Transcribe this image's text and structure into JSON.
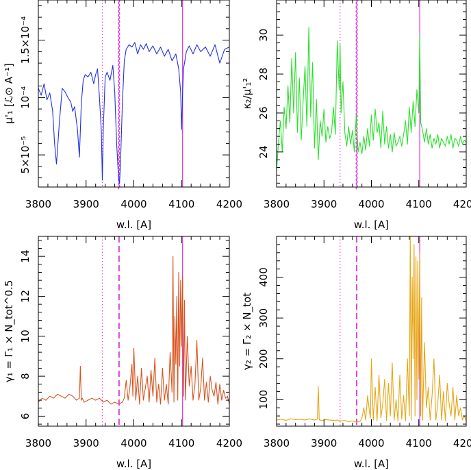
{
  "chart_data": [
    {
      "type": "line",
      "panel": "top-left",
      "xlabel": "w.l. [A]",
      "ylabel": "μ'₁ [ℒ⊙ A⁻¹]",
      "y_scale_factors": [
        "10⁻⁵",
        "10⁻⁴"
      ],
      "xlim": [
        3800,
        4200
      ],
      "ylim": [
        2.2e-05,
        0.000185
      ],
      "x_ticks": [
        3800,
        3900,
        4000,
        4100,
        4200
      ],
      "x_tick_labels": [
        "3800",
        "3900",
        "4000",
        "4100",
        "4200"
      ],
      "y_ticks": [
        5e-05,
        0.0001,
        0.00015
      ],
      "y_tick_labels": [
        "5×10⁻⁵",
        "10⁻⁴",
        "1.5×10⁻⁴"
      ],
      "color": "#1f2fe6",
      "series": [
        {
          "x": [
            3800,
            3806,
            3812,
            3818,
            3824,
            3830,
            3834,
            3838,
            3844,
            3850,
            3856,
            3862,
            3868,
            3872,
            3876,
            3882,
            3886,
            3890,
            3894,
            3898,
            3904,
            3910,
            3916,
            3920,
            3924,
            3928,
            3932,
            3934,
            3936,
            3940,
            3944,
            3950,
            3956,
            3960,
            3964,
            3968,
            3970,
            3972,
            3976,
            3980,
            3984,
            3990,
            3996,
            4002,
            4008,
            4014,
            4020,
            4026,
            4032,
            4040,
            4048,
            4056,
            4064,
            4072,
            4080,
            4088,
            4094,
            4098,
            4100,
            4102,
            4104,
            4110,
            4116,
            4124,
            4132,
            4140,
            4150,
            4160,
            4170,
            4180,
            4190,
            4200
          ],
          "y": [
            0.000108,
            0.000102,
            0.000112,
            9.8e-05,
            0.000104,
            8.8e-05,
            6e-05,
            4.2e-05,
            7.8e-05,
            0.000108,
            0.000105,
            0.0001,
            9.6e-05,
            8.8e-05,
            9.2e-05,
            7.2e-05,
            4.8e-05,
            9.5e-05,
            0.000115,
            0.00012,
            0.000118,
            0.000122,
            0.000112,
            0.00012,
            0.000125,
            0.0001,
            7e-05,
            2.8e-05,
            7.2e-05,
            0.000118,
            0.000122,
            0.000115,
            0.000128,
            0.000105,
            6e-05,
            3e-05,
            2.5e-05,
            4.2e-05,
            9.5e-05,
            0.000132,
            0.000142,
            0.000146,
            0.000144,
            0.000148,
            0.000138,
            0.000146,
            0.000142,
            0.000147,
            0.00014,
            0.000145,
            0.000138,
            0.000144,
            0.000136,
            0.000142,
            0.000132,
            0.000138,
            0.000125,
            0.000105,
            7.2e-05,
            0.000102,
            0.000125,
            0.00014,
            0.000145,
            0.000138,
            0.000146,
            0.00014,
            0.000144,
            0.000136,
            0.000146,
            0.00013,
            0.000142,
            0.000144
          ]
        }
      ],
      "vlines": [
        {
          "x": 3934,
          "style": "dotted"
        },
        {
          "x": 3969,
          "style": "wavy"
        },
        {
          "x": 4102,
          "style": "solid"
        }
      ]
    },
    {
      "type": "line",
      "panel": "top-right",
      "xlabel": "w.l. [A]",
      "ylabel": "κ₂/μ'₁²",
      "xlim": [
        3800,
        4200
      ],
      "ylim": [
        22.2,
        31.8
      ],
      "x_ticks": [
        3800,
        3900,
        4000,
        4100,
        4200
      ],
      "x_tick_labels": [
        "3800",
        "3900",
        "4000",
        "4100",
        "4200"
      ],
      "y_ticks": [
        24,
        26,
        28,
        30
      ],
      "y_tick_labels": [
        "24",
        "26",
        "28",
        "30"
      ],
      "color": "#2ae02a",
      "series": [
        {
          "x": [
            3800,
            3804,
            3808,
            3812,
            3816,
            3820,
            3824,
            3828,
            3832,
            3836,
            3840,
            3844,
            3848,
            3852,
            3856,
            3860,
            3864,
            3868,
            3872,
            3876,
            3880,
            3884,
            3888,
            3892,
            3896,
            3900,
            3904,
            3908,
            3912,
            3916,
            3920,
            3924,
            3928,
            3932,
            3934,
            3936,
            3940,
            3944,
            3948,
            3952,
            3956,
            3960,
            3964,
            3968,
            3972,
            3976,
            3980,
            3984,
            3988,
            3992,
            3996,
            4000,
            4004,
            4008,
            4012,
            4016,
            4020,
            4024,
            4028,
            4032,
            4036,
            4040,
            4044,
            4048,
            4052,
            4056,
            4060,
            4064,
            4068,
            4072,
            4076,
            4080,
            4084,
            4088,
            4092,
            4096,
            4100,
            4102,
            4104,
            4108,
            4112,
            4116,
            4120,
            4124,
            4128,
            4132,
            4136,
            4140,
            4144,
            4148,
            4152,
            4156,
            4160,
            4164,
            4168,
            4172,
            4176,
            4180,
            4184,
            4188,
            4192,
            4196,
            4200
          ],
          "y": [
            23.0,
            24.5,
            25.6,
            24.0,
            26.3,
            25.2,
            27.4,
            25.5,
            28.8,
            26.0,
            29.1,
            25.0,
            27.8,
            24.6,
            26.6,
            28.4,
            25.3,
            30.4,
            25.8,
            28.6,
            24.2,
            26.7,
            23.6,
            25.6,
            24.8,
            26.2,
            24.5,
            25.3,
            24.7,
            25.0,
            26.3,
            24.9,
            29.7,
            27.2,
            29.5,
            26.0,
            27.6,
            25.0,
            24.3,
            25.3,
            24.4,
            25.1,
            24.0,
            25.9,
            24.0,
            24.5,
            23.9,
            24.8,
            24.1,
            25.2,
            24.3,
            25.9,
            24.6,
            26.2,
            25.0,
            25.5,
            24.2,
            26.1,
            24.4,
            25.3,
            24.2,
            24.9,
            24.0,
            25.0,
            24.3,
            24.5,
            24.8,
            24.3,
            24.9,
            25.6,
            24.4,
            26.3,
            25.0,
            26.6,
            25.3,
            27.2,
            26.0,
            30.0,
            25.5,
            25.1,
            24.5,
            25.2,
            24.4,
            24.9,
            24.2,
            24.7,
            24.4,
            24.9,
            24.2,
            24.7,
            24.5,
            24.3,
            24.8,
            24.4,
            24.9,
            24.2,
            24.7,
            24.6,
            24.3,
            24.8,
            24.4,
            24.6,
            24.5
          ]
        }
      ],
      "vlines": [
        {
          "x": 3934,
          "style": "dotted"
        },
        {
          "x": 3969,
          "style": "wavy"
        },
        {
          "x": 4102,
          "style": "solid"
        }
      ]
    },
    {
      "type": "line",
      "panel": "bottom-left",
      "xlabel": "w.l. [A]",
      "ylabel": "γ₁ = Γ₁ × N_tot^0.5",
      "xlim": [
        3800,
        4200
      ],
      "ylim": [
        5.5,
        15.0
      ],
      "x_ticks": [
        3800,
        3900,
        4000,
        4100,
        4200
      ],
      "x_tick_labels": [
        "3800",
        "3900",
        "4000",
        "4100",
        "4200"
      ],
      "y_ticks": [
        6,
        8,
        10,
        12,
        14
      ],
      "y_tick_labels": [
        "6",
        "8",
        "10",
        "12",
        "14"
      ],
      "color": "#d9531e",
      "series": [
        {
          "x": [
            3800,
            3808,
            3816,
            3824,
            3832,
            3840,
            3848,
            3856,
            3864,
            3872,
            3880,
            3886,
            3888,
            3890,
            3892,
            3896,
            3904,
            3912,
            3920,
            3928,
            3936,
            3944,
            3952,
            3960,
            3968,
            3976,
            3980,
            3984,
            3988,
            3992,
            3996,
            3998,
            4000,
            4004,
            4008,
            4012,
            4016,
            4020,
            4024,
            4028,
            4032,
            4036,
            4040,
            4044,
            4048,
            4052,
            4056,
            4060,
            4064,
            4068,
            4072,
            4076,
            4080,
            4082,
            4084,
            4086,
            4088,
            4090,
            4092,
            4094,
            4096,
            4098,
            4100,
            4102,
            4104,
            4106,
            4108,
            4112,
            4116,
            4120,
            4124,
            4128,
            4132,
            4136,
            4140,
            4144,
            4148,
            4152,
            4156,
            4160,
            4164,
            4168,
            4172,
            4176,
            4180,
            4184,
            4188,
            4192,
            4196,
            4200
          ],
          "y": [
            6.7,
            6.9,
            6.8,
            7.0,
            6.9,
            7.1,
            7.0,
            6.9,
            7.1,
            7.0,
            6.8,
            6.9,
            8.5,
            6.8,
            6.9,
            6.7,
            6.8,
            6.9,
            6.8,
            6.9,
            6.7,
            6.8,
            6.6,
            6.7,
            6.6,
            6.7,
            6.9,
            7.8,
            6.8,
            7.5,
            8.6,
            7.0,
            9.4,
            6.8,
            8.0,
            6.6,
            8.4,
            6.8,
            7.4,
            8.0,
            6.7,
            8.3,
            7.0,
            8.9,
            6.7,
            7.6,
            6.6,
            8.4,
            6.8,
            7.6,
            6.6,
            9.2,
            7.2,
            14.0,
            6.7,
            11.0,
            8.6,
            12.0,
            6.8,
            13.2,
            8.5,
            12.8,
            9.5,
            13.0,
            7.0,
            11.8,
            6.8,
            10.0,
            7.5,
            8.5,
            6.8,
            7.6,
            9.8,
            6.8,
            7.4,
            8.9,
            6.8,
            7.7,
            6.7,
            8.0,
            7.3,
            7.0,
            7.7,
            6.6,
            7.6,
            6.8,
            7.3,
            6.9,
            7.0,
            6.6
          ]
        }
      ],
      "vlines": [
        {
          "x": 3934,
          "style": "dotted"
        },
        {
          "x": 3969,
          "style": "dashed"
        },
        {
          "x": 4102,
          "style": "solid"
        }
      ]
    },
    {
      "type": "line",
      "panel": "bottom-right",
      "xlabel": "w.l. [A]",
      "ylabel": "γ₂ = Γ₂ × N_tot",
      "xlim": [
        3800,
        4200
      ],
      "ylim": [
        35,
        500
      ],
      "x_ticks": [
        3800,
        3900,
        4000,
        4100,
        4200
      ],
      "x_tick_labels": [
        "3800",
        "3900",
        "4000",
        "4100",
        "4200"
      ],
      "y_ticks": [
        100,
        200,
        300,
        400
      ],
      "y_tick_labels": [
        "100",
        "200",
        "300",
        "400"
      ],
      "color": "#e6a514",
      "series": [
        {
          "x": [
            3800,
            3810,
            3820,
            3830,
            3840,
            3850,
            3860,
            3870,
            3880,
            3886,
            3888,
            3890,
            3892,
            3896,
            3904,
            3912,
            3920,
            3928,
            3936,
            3944,
            3952,
            3960,
            3968,
            3976,
            3980,
            3984,
            3988,
            3992,
            3996,
            3998,
            4000,
            4004,
            4008,
            4012,
            4016,
            4020,
            4024,
            4028,
            4032,
            4036,
            4040,
            4044,
            4048,
            4052,
            4056,
            4060,
            4064,
            4068,
            4072,
            4076,
            4080,
            4082,
            4084,
            4086,
            4088,
            4090,
            4092,
            4094,
            4096,
            4098,
            4100,
            4102,
            4104,
            4106,
            4108,
            4112,
            4116,
            4120,
            4124,
            4128,
            4132,
            4136,
            4140,
            4144,
            4148,
            4152,
            4156,
            4160,
            4164,
            4168,
            4172,
            4176,
            4180,
            4184,
            4188,
            4192,
            4196,
            4200
          ],
          "y": [
            50,
            52,
            49,
            53,
            51,
            52,
            50,
            53,
            50,
            52,
            132,
            51,
            50,
            49,
            51,
            50,
            49,
            50,
            48,
            49,
            46,
            48,
            45,
            47,
            55,
            80,
            50,
            110,
            70,
            55,
            200,
            50,
            130,
            48,
            160,
            55,
            90,
            150,
            48,
            140,
            60,
            190,
            50,
            100,
            48,
            160,
            52,
            110,
            48,
            200,
            60,
            500,
            50,
            400,
            200,
            480,
            60,
            450,
            100,
            440,
            150,
            460,
            60,
            350,
            50,
            240,
            80,
            130,
            50,
            110,
            200,
            50,
            90,
            160,
            50,
            120,
            48,
            140,
            90,
            60,
            130,
            50,
            110,
            60,
            80,
            50,
            60,
            48
          ]
        }
      ],
      "vlines": [
        {
          "x": 3934,
          "style": "dotted"
        },
        {
          "x": 3969,
          "style": "dashed"
        },
        {
          "x": 4102,
          "style": "solid"
        }
      ]
    }
  ]
}
